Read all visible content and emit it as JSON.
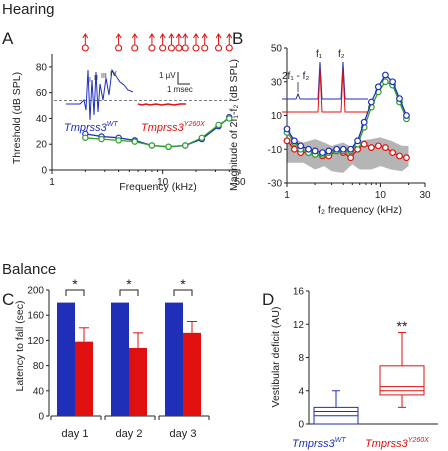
{
  "sections": {
    "hearing": "Hearing",
    "balance": "Balance"
  },
  "colors": {
    "wt": "#1f2fb8",
    "mutant": "#e01010",
    "green": "#2aa02a",
    "gray": "#a8a8a8",
    "axis": "#222222"
  },
  "chart_data": [
    {
      "id": "A",
      "type": "line",
      "panel_label": "A",
      "xlabel": "Frequency (kHz)",
      "ylabel": "Threshold (dB SPL)",
      "xscale": "log",
      "xlim": [
        1,
        50
      ],
      "ylim": [
        0,
        90
      ],
      "xticks": [
        1,
        10,
        50
      ],
      "xtick_labels": [
        "1",
        "10",
        "50"
      ],
      "yticks": [
        0,
        20,
        40,
        60,
        80
      ],
      "ytick_labels": [
        "0",
        "20",
        "40",
        "60",
        "80"
      ],
      "series": [
        {
          "color": "blue",
          "x": [
            2,
            2.8,
            4,
            5.6,
            8,
            11.3,
            16,
            22.6,
            32,
            40
          ],
          "y": [
            28,
            26,
            25,
            23,
            19,
            18,
            19,
            24,
            34,
            41
          ]
        },
        {
          "color": "green",
          "x": [
            2,
            2.8,
            4,
            5.6,
            8,
            11.3,
            16,
            22.6,
            32,
            40
          ],
          "y": [
            25,
            24,
            23,
            22,
            19,
            18,
            19,
            25,
            35,
            40
          ]
        }
      ],
      "no_response_arrows_x": [
        2,
        4,
        5.6,
        8,
        10,
        12,
        14,
        16,
        20,
        24,
        32,
        40
      ],
      "dashed_line_y": 54,
      "inset": {
        "wt_label": "Tmprss3",
        "wt_sup": "WT",
        "mut_label": "Tmprss3",
        "mut_sup": "Y260X",
        "waves": [
          "I",
          "II",
          "III",
          "IV"
        ],
        "scale_amp": "1 µV",
        "scale_time": "1 msec"
      }
    },
    {
      "id": "B",
      "type": "line",
      "panel_label": "B",
      "xlabel": "f₂ frequency (kHz)",
      "ylabel": "Magnitude of 2f₁-f₂ (dB SPL)",
      "xscale": "log",
      "xlim": [
        1,
        30
      ],
      "ylim": [
        -30,
        50
      ],
      "xticks": [
        1,
        10,
        30
      ],
      "xtick_labels": [
        "1",
        "10",
        "30"
      ],
      "yticks": [
        -30,
        -10,
        10,
        30,
        50
      ],
      "ytick_labels": [
        "-30",
        "-10",
        "10",
        "30",
        "50"
      ],
      "series": [
        {
          "color": "blue",
          "x": [
            1,
            1.2,
            1.4,
            1.7,
            2,
            2.4,
            2.8,
            3.4,
            4,
            4.8,
            5.7,
            6.7,
            8,
            9.5,
            11.3,
            13.5,
            16,
            19
          ],
          "y": [
            2,
            -5,
            -8,
            -10,
            -11,
            -12,
            -11,
            -10,
            -10,
            -10,
            -5,
            6,
            18,
            27,
            34,
            30,
            20,
            10
          ]
        },
        {
          "color": "green",
          "x": [
            1,
            1.2,
            1.4,
            1.7,
            2,
            2.4,
            2.8,
            3.4,
            4,
            4.8,
            5.7,
            6.7,
            8,
            9.5,
            11.3,
            13.5,
            16,
            19
          ],
          "y": [
            0,
            -6,
            -10,
            -12,
            -13,
            -13,
            -12,
            -11,
            -11,
            -11,
            -7,
            3,
            15,
            24,
            30,
            28,
            18,
            8
          ]
        },
        {
          "color": "red",
          "x": [
            1,
            1.2,
            1.4,
            1.7,
            2,
            2.4,
            2.8,
            3.4,
            4,
            4.8,
            5.7,
            6.7,
            8,
            9.5,
            11.3,
            13.5,
            16,
            19
          ],
          "y": [
            -5,
            -10,
            -12,
            -12,
            -13,
            -14,
            -14,
            -11,
            -12,
            -15,
            -10,
            -7,
            -9,
            -8,
            -9,
            -12,
            -14,
            -15
          ]
        }
      ],
      "noise_floor": {
        "x": [
          1,
          1.5,
          2,
          2.5,
          3,
          4,
          5,
          6,
          8,
          10,
          13,
          17,
          20
        ],
        "low": [
          -18,
          -18,
          -22,
          -20,
          -23,
          -24,
          -19,
          -22,
          -22,
          -20,
          -22,
          -23,
          -20
        ],
        "high": [
          -3,
          -6,
          -4,
          -6,
          -8,
          -6,
          -9,
          -5,
          -4,
          -3,
          -5,
          -8,
          -8
        ]
      },
      "inset": {
        "f1": "f₁",
        "f2": "f₂",
        "dp": "2f₁ - f₂"
      }
    },
    {
      "id": "C",
      "type": "bar",
      "panel_label": "C",
      "categories": [
        "day 1",
        "day 2",
        "day 3"
      ],
      "ylabel": "Latency to fall (sec)",
      "ylim": [
        0,
        200
      ],
      "yticks": [
        0,
        40,
        80,
        120,
        160,
        200
      ],
      "ytick_labels": [
        "0",
        "40",
        "80",
        "120",
        "160",
        "200"
      ],
      "series": [
        {
          "color": "blue",
          "values": [
            180,
            180,
            180
          ],
          "errors": [
            0,
            0,
            0
          ]
        },
        {
          "color": "red",
          "values": [
            118,
            108,
            132
          ],
          "errors": [
            22,
            24,
            18
          ]
        }
      ],
      "significance": [
        "*",
        "*",
        "*"
      ]
    },
    {
      "id": "D",
      "type": "box",
      "panel_label": "D",
      "ylabel": "Vestibular deficit (AU)",
      "ylim": [
        0,
        16
      ],
      "yticks": [
        0,
        4,
        8,
        12,
        16
      ],
      "ytick_labels": [
        "0",
        "4",
        "8",
        "12",
        "16"
      ],
      "groups": [
        {
          "label": "Tmprss3",
          "sup": "WT",
          "color": "blue",
          "min": 0,
          "q1": 0,
          "median": 1,
          "mean": 1.5,
          "q3": 2,
          "max": 4
        },
        {
          "label": "Tmprss3",
          "sup": "Y260X",
          "color": "red",
          "min": 2,
          "q1": 3.5,
          "median": 4,
          "mean": 4.5,
          "q3": 7,
          "max": 11
        }
      ],
      "significance": "**"
    }
  ]
}
